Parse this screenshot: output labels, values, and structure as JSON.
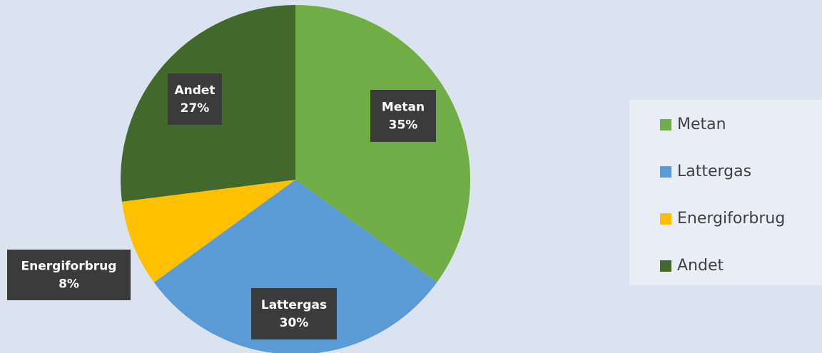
{
  "chart_data": {
    "type": "pie",
    "categories": [
      "Metan",
      "Lattergas",
      "Energiforbrug",
      "Andet"
    ],
    "values": [
      35,
      30,
      8,
      27
    ],
    "value_labels": [
      "35%",
      "30%",
      "8%",
      "27%"
    ],
    "colors": [
      "#70ad47",
      "#5b9bd5",
      "#ffc000",
      "#43682b"
    ],
    "legend": "right"
  }
}
